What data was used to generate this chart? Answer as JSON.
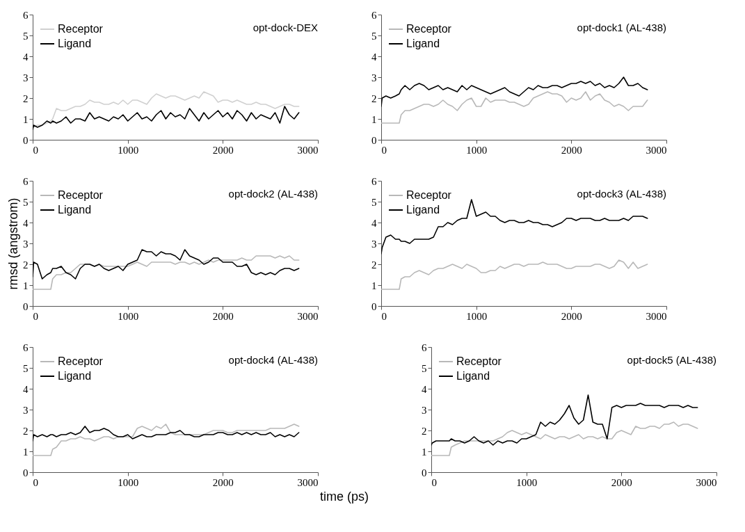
{
  "chart_data": [
    {
      "type": "line",
      "title": "opt-dock-DEX",
      "legend": "top left",
      "xlim": [
        0,
        3000
      ],
      "xticks": [
        0,
        1000,
        2000,
        3000
      ],
      "ylim": [
        0,
        6
      ],
      "yticks": [
        0,
        1,
        2,
        3,
        4,
        5,
        6
      ],
      "x": [
        0,
        10,
        50,
        100,
        150,
        190,
        210,
        250,
        300,
        350,
        400,
        450,
        500,
        550,
        600,
        650,
        700,
        750,
        800,
        850,
        900,
        950,
        1000,
        1050,
        1100,
        1150,
        1200,
        1250,
        1300,
        1350,
        1400,
        1450,
        1500,
        1550,
        1600,
        1650,
        1700,
        1750,
        1800,
        1850,
        1900,
        1950,
        2000,
        2050,
        2100,
        2150,
        2200,
        2250,
        2300,
        2350,
        2400,
        2450,
        2500,
        2550,
        2600,
        2650,
        2700,
        2750,
        2800
      ],
      "series": [
        {
          "name": "Receptor",
          "color": "#d0d0d0",
          "values": [
            0.6,
            0.6,
            0.7,
            0.7,
            0.8,
            0.9,
            1.0,
            1.5,
            1.4,
            1.4,
            1.5,
            1.6,
            1.6,
            1.7,
            1.9,
            1.8,
            1.8,
            1.7,
            1.7,
            1.8,
            1.7,
            1.9,
            1.7,
            1.9,
            1.9,
            1.8,
            1.7,
            2.0,
            2.2,
            2.1,
            2.0,
            2.1,
            2.1,
            2.0,
            1.9,
            2.0,
            2.1,
            2.0,
            2.3,
            2.2,
            2.1,
            1.8,
            1.9,
            1.9,
            1.8,
            1.9,
            1.8,
            1.7,
            1.7,
            1.8,
            1.7,
            1.7,
            1.6,
            1.5,
            1.6,
            1.7,
            1.7,
            1.6,
            1.6
          ]
        },
        {
          "name": "Ligand",
          "color": "#000000",
          "values": [
            0.5,
            0.7,
            0.6,
            0.7,
            0.9,
            0.8,
            0.9,
            0.8,
            0.9,
            1.1,
            0.8,
            1.0,
            1.0,
            0.9,
            1.3,
            1.0,
            1.1,
            1.0,
            0.9,
            1.1,
            1.0,
            1.2,
            0.9,
            1.1,
            1.3,
            1.0,
            1.1,
            0.9,
            1.2,
            1.4,
            1.0,
            1.3,
            1.1,
            1.2,
            1.0,
            1.5,
            1.2,
            0.9,
            1.3,
            1.0,
            1.2,
            1.4,
            1.1,
            1.3,
            1.0,
            1.4,
            1.2,
            0.9,
            1.3,
            1.0,
            1.2,
            1.1,
            1.0,
            1.3,
            0.8,
            1.6,
            1.2,
            1.0,
            1.3
          ]
        }
      ]
    },
    {
      "type": "line",
      "title": "opt-dock1 (AL-438)",
      "legend": "top left",
      "xlim": [
        0,
        3000
      ],
      "xticks": [
        0,
        1000,
        2000,
        3000
      ],
      "ylim": [
        0,
        6
      ],
      "yticks": [
        0,
        1,
        2,
        3,
        4,
        5,
        6
      ],
      "x": [
        0,
        10,
        50,
        100,
        150,
        190,
        210,
        250,
        300,
        350,
        400,
        450,
        500,
        550,
        600,
        650,
        700,
        750,
        800,
        850,
        900,
        950,
        1000,
        1050,
        1100,
        1150,
        1200,
        1250,
        1300,
        1350,
        1400,
        1450,
        1500,
        1550,
        1600,
        1650,
        1700,
        1750,
        1800,
        1850,
        1900,
        1950,
        2000,
        2050,
        2100,
        2150,
        2200,
        2250,
        2300,
        2350,
        2400,
        2450,
        2500,
        2550,
        2600,
        2650,
        2700,
        2750,
        2800
      ],
      "series": [
        {
          "name": "Receptor",
          "color": "#b8b8b8",
          "values": [
            0.8,
            0.8,
            0.8,
            0.8,
            0.8,
            0.8,
            1.2,
            1.4,
            1.4,
            1.5,
            1.6,
            1.7,
            1.7,
            1.6,
            1.7,
            1.9,
            1.7,
            1.6,
            1.4,
            1.7,
            1.9,
            2.0,
            1.6,
            1.6,
            2.0,
            1.8,
            1.9,
            1.9,
            1.9,
            1.8,
            1.8,
            1.7,
            1.6,
            1.7,
            2.0,
            2.1,
            2.2,
            2.3,
            2.2,
            2.2,
            2.1,
            1.8,
            2.0,
            1.9,
            2.0,
            2.3,
            1.9,
            2.1,
            2.2,
            1.9,
            1.8,
            1.6,
            1.7,
            1.6,
            1.4,
            1.6,
            1.6,
            1.6,
            1.9
          ]
        },
        {
          "name": "Ligand",
          "color": "#000000",
          "values": [
            1.6,
            2.0,
            2.1,
            2.0,
            2.1,
            2.2,
            2.4,
            2.6,
            2.4,
            2.6,
            2.7,
            2.6,
            2.4,
            2.5,
            2.6,
            2.4,
            2.5,
            2.4,
            2.3,
            2.6,
            2.4,
            2.6,
            2.5,
            2.4,
            2.3,
            2.2,
            2.3,
            2.4,
            2.5,
            2.3,
            2.2,
            2.1,
            2.3,
            2.5,
            2.4,
            2.6,
            2.5,
            2.5,
            2.6,
            2.6,
            2.5,
            2.6,
            2.7,
            2.7,
            2.8,
            2.7,
            2.8,
            2.6,
            2.7,
            2.5,
            2.6,
            2.5,
            2.7,
            3.0,
            2.6,
            2.6,
            2.7,
            2.5,
            2.4
          ]
        }
      ]
    },
    {
      "type": "line",
      "title": "opt-dock2 (AL-438)",
      "ylabel": "rmsd (angstrom)",
      "legend": "top left",
      "xlim": [
        0,
        3000
      ],
      "xticks": [
        0,
        1000,
        2000,
        3000
      ],
      "ylim": [
        0,
        6
      ],
      "yticks": [
        0,
        1,
        2,
        3,
        4,
        5,
        6
      ],
      "x": [
        0,
        10,
        50,
        100,
        150,
        190,
        210,
        250,
        300,
        350,
        400,
        450,
        500,
        550,
        600,
        650,
        700,
        750,
        800,
        850,
        900,
        950,
        1000,
        1050,
        1100,
        1150,
        1200,
        1250,
        1300,
        1350,
        1400,
        1450,
        1500,
        1550,
        1600,
        1650,
        1700,
        1750,
        1800,
        1850,
        1900,
        1950,
        2000,
        2050,
        2100,
        2150,
        2200,
        2250,
        2300,
        2350,
        2400,
        2450,
        2500,
        2550,
        2600,
        2650,
        2700,
        2750,
        2800
      ],
      "series": [
        {
          "name": "Receptor",
          "color": "#b8b8b8",
          "values": [
            0.8,
            0.8,
            0.8,
            0.8,
            0.8,
            0.8,
            1.3,
            1.5,
            1.5,
            1.6,
            1.6,
            1.8,
            2.0,
            2.0,
            2.0,
            1.9,
            2.0,
            1.9,
            1.9,
            1.9,
            1.9,
            1.9,
            1.9,
            2.0,
            2.1,
            2.0,
            1.9,
            2.1,
            2.1,
            2.1,
            2.1,
            2.1,
            2.0,
            2.1,
            2.1,
            2.0,
            2.1,
            2.0,
            2.1,
            2.2,
            2.1,
            2.2,
            2.2,
            2.2,
            2.2,
            2.2,
            2.3,
            2.2,
            2.2,
            2.4,
            2.4,
            2.4,
            2.4,
            2.3,
            2.4,
            2.3,
            2.4,
            2.2,
            2.2
          ]
        },
        {
          "name": "Ligand",
          "color": "#000000",
          "values": [
            1.4,
            2.1,
            2.0,
            1.3,
            1.5,
            1.6,
            1.8,
            1.8,
            1.9,
            1.6,
            1.5,
            1.3,
            1.8,
            2.0,
            2.0,
            1.9,
            2.0,
            1.8,
            1.7,
            1.8,
            1.9,
            1.7,
            2.0,
            2.1,
            2.2,
            2.7,
            2.6,
            2.6,
            2.4,
            2.6,
            2.5,
            2.5,
            2.4,
            2.2,
            2.7,
            2.4,
            2.3,
            2.2,
            2.0,
            2.1,
            2.3,
            2.3,
            2.1,
            2.1,
            2.1,
            1.9,
            1.9,
            2.0,
            1.6,
            1.5,
            1.6,
            1.5,
            1.6,
            1.5,
            1.7,
            1.8,
            1.8,
            1.7,
            1.8
          ]
        }
      ]
    },
    {
      "type": "line",
      "title": "opt-dock3 (AL-438)",
      "legend": "top left",
      "xlim": [
        0,
        3000
      ],
      "xticks": [
        0,
        1000,
        2000,
        3000
      ],
      "ylim": [
        0,
        6
      ],
      "yticks": [
        0,
        1,
        2,
        3,
        4,
        5,
        6
      ],
      "x": [
        0,
        10,
        50,
        100,
        150,
        190,
        210,
        250,
        300,
        350,
        400,
        450,
        500,
        550,
        600,
        650,
        700,
        750,
        800,
        850,
        900,
        950,
        1000,
        1050,
        1100,
        1150,
        1200,
        1250,
        1300,
        1350,
        1400,
        1450,
        1500,
        1550,
        1600,
        1650,
        1700,
        1750,
        1800,
        1850,
        1900,
        1950,
        2000,
        2050,
        2100,
        2150,
        2200,
        2250,
        2300,
        2350,
        2400,
        2450,
        2500,
        2550,
        2600,
        2650,
        2700,
        2750,
        2800
      ],
      "series": [
        {
          "name": "Receptor",
          "color": "#b8b8b8",
          "values": [
            0.8,
            0.8,
            0.8,
            0.8,
            0.8,
            0.8,
            1.3,
            1.4,
            1.4,
            1.6,
            1.7,
            1.6,
            1.5,
            1.7,
            1.8,
            1.8,
            1.9,
            2.0,
            1.9,
            1.8,
            2.0,
            1.9,
            1.8,
            1.6,
            1.6,
            1.7,
            1.7,
            1.9,
            1.8,
            1.9,
            2.0,
            2.0,
            1.9,
            2.0,
            2.0,
            2.0,
            2.1,
            2.0,
            2.0,
            2.0,
            1.9,
            1.8,
            1.8,
            1.9,
            1.9,
            1.9,
            1.9,
            2.0,
            2.0,
            1.9,
            1.8,
            1.9,
            2.2,
            2.1,
            1.8,
            2.1,
            1.8,
            1.9,
            2.0
          ]
        },
        {
          "name": "Ligand",
          "color": "#000000",
          "values": [
            2.5,
            2.8,
            3.3,
            3.4,
            3.2,
            3.2,
            3.1,
            3.1,
            3.0,
            3.2,
            3.2,
            3.2,
            3.2,
            3.3,
            3.8,
            3.8,
            4.0,
            3.9,
            4.1,
            4.2,
            4.2,
            5.1,
            4.3,
            4.4,
            4.5,
            4.3,
            4.3,
            4.1,
            4.0,
            4.1,
            4.1,
            4.0,
            4.0,
            4.1,
            4.0,
            4.0,
            3.9,
            3.9,
            3.8,
            3.9,
            4.0,
            4.2,
            4.2,
            4.1,
            4.2,
            4.2,
            4.2,
            4.1,
            4.1,
            4.2,
            4.1,
            4.1,
            4.1,
            4.2,
            4.1,
            4.3,
            4.3,
            4.3,
            4.2
          ]
        }
      ]
    },
    {
      "type": "line",
      "title": "opt-dock4 (AL-438)",
      "xlabel": "time (ps)",
      "legend": "top left",
      "xlim": [
        0,
        3000
      ],
      "xticks": [
        0,
        1000,
        2000,
        3000
      ],
      "ylim": [
        0,
        6
      ],
      "yticks": [
        0,
        1,
        2,
        3,
        4,
        5,
        6
      ],
      "x": [
        0,
        10,
        50,
        100,
        150,
        190,
        210,
        250,
        300,
        350,
        400,
        450,
        500,
        550,
        600,
        650,
        700,
        750,
        800,
        850,
        900,
        950,
        1000,
        1050,
        1100,
        1150,
        1200,
        1250,
        1300,
        1350,
        1400,
        1450,
        1500,
        1550,
        1600,
        1650,
        1700,
        1750,
        1800,
        1850,
        1900,
        1950,
        2000,
        2050,
        2100,
        2150,
        2200,
        2250,
        2300,
        2350,
        2400,
        2450,
        2500,
        2550,
        2600,
        2650,
        2700,
        2750,
        2800
      ],
      "series": [
        {
          "name": "Receptor",
          "color": "#b8b8b8",
          "values": [
            0.8,
            0.8,
            0.8,
            0.8,
            0.8,
            0.8,
            1.1,
            1.2,
            1.5,
            1.5,
            1.6,
            1.6,
            1.7,
            1.6,
            1.6,
            1.5,
            1.6,
            1.7,
            1.7,
            1.6,
            1.7,
            1.7,
            1.7,
            1.7,
            2.1,
            2.2,
            2.1,
            2.0,
            2.2,
            2.1,
            2.3,
            1.9,
            1.8,
            1.8,
            1.8,
            1.8,
            1.8,
            1.8,
            1.8,
            1.9,
            2.0,
            2.0,
            2.0,
            1.9,
            1.9,
            2.0,
            2.0,
            2.0,
            2.0,
            2.0,
            2.0,
            2.0,
            2.1,
            2.1,
            2.1,
            2.1,
            2.2,
            2.3,
            2.2
          ]
        },
        {
          "name": "Ligand",
          "color": "#000000",
          "values": [
            1.5,
            1.8,
            1.7,
            1.8,
            1.7,
            1.8,
            1.8,
            1.7,
            1.8,
            1.8,
            1.9,
            1.8,
            1.9,
            2.2,
            1.9,
            2.0,
            2.0,
            2.1,
            2.0,
            1.8,
            1.7,
            1.7,
            1.8,
            1.6,
            1.7,
            1.8,
            1.7,
            1.7,
            1.8,
            1.8,
            1.8,
            1.9,
            1.9,
            2.0,
            1.8,
            1.8,
            1.7,
            1.7,
            1.8,
            1.8,
            1.8,
            1.9,
            1.9,
            1.8,
            1.8,
            1.9,
            1.8,
            1.9,
            1.8,
            1.9,
            1.8,
            1.8,
            1.9,
            1.7,
            1.8,
            1.7,
            1.8,
            1.7,
            1.9
          ]
        }
      ]
    },
    {
      "type": "line",
      "title": "opt-dock5 (AL-438)",
      "legend": "top left",
      "xlim": [
        0,
        3000
      ],
      "xticks": [
        0,
        1000,
        2000,
        3000
      ],
      "ylim": [
        0,
        6
      ],
      "yticks": [
        0,
        1,
        2,
        3,
        4,
        5,
        6
      ],
      "x": [
        0,
        10,
        50,
        100,
        150,
        190,
        210,
        250,
        300,
        350,
        400,
        450,
        500,
        550,
        600,
        650,
        700,
        750,
        800,
        850,
        900,
        950,
        1000,
        1050,
        1100,
        1150,
        1200,
        1250,
        1300,
        1350,
        1400,
        1450,
        1500,
        1550,
        1600,
        1650,
        1700,
        1750,
        1800,
        1850,
        1900,
        1950,
        2000,
        2050,
        2100,
        2150,
        2200,
        2250,
        2300,
        2350,
        2400,
        2450,
        2500,
        2550,
        2600,
        2650,
        2700,
        2750,
        2800
      ],
      "series": [
        {
          "name": "Receptor",
          "color": "#b8b8b8",
          "values": [
            0.8,
            0.8,
            0.8,
            0.8,
            0.8,
            0.8,
            1.2,
            1.3,
            1.4,
            1.5,
            1.5,
            1.5,
            1.5,
            1.5,
            1.5,
            1.5,
            1.6,
            1.7,
            1.9,
            2.0,
            1.9,
            1.8,
            1.9,
            1.8,
            1.7,
            1.6,
            1.8,
            1.7,
            1.6,
            1.7,
            1.7,
            1.6,
            1.7,
            1.8,
            1.6,
            1.7,
            1.7,
            1.6,
            1.7,
            1.6,
            1.6,
            1.9,
            2.0,
            1.9,
            1.8,
            2.2,
            2.1,
            2.1,
            2.2,
            2.2,
            2.1,
            2.3,
            2.3,
            2.4,
            2.2,
            2.3,
            2.3,
            2.2,
            2.1
          ]
        },
        {
          "name": "Ligand",
          "color": "#000000",
          "values": [
            1.3,
            1.4,
            1.5,
            1.5,
            1.5,
            1.5,
            1.6,
            1.5,
            1.5,
            1.4,
            1.5,
            1.7,
            1.5,
            1.4,
            1.5,
            1.3,
            1.5,
            1.4,
            1.5,
            1.5,
            1.4,
            1.6,
            1.6,
            1.7,
            1.8,
            2.4,
            2.2,
            2.4,
            2.3,
            2.5,
            2.8,
            3.2,
            2.6,
            2.3,
            2.5,
            3.7,
            2.4,
            2.3,
            2.3,
            1.6,
            3.1,
            3.2,
            3.1,
            3.2,
            3.2,
            3.2,
            3.3,
            3.2,
            3.2,
            3.2,
            3.2,
            3.1,
            3.2,
            3.2,
            3.2,
            3.1,
            3.2,
            3.1,
            3.1
          ]
        }
      ]
    }
  ]
}
